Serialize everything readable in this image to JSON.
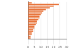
{
  "chart_data": {
    "type": "bar",
    "orientation": "horizontal",
    "categories": [
      null,
      null,
      null,
      null,
      null,
      null,
      null,
      null,
      null,
      null,
      null,
      null,
      null,
      null,
      null,
      null,
      null,
      null,
      null,
      null,
      null,
      null
    ],
    "values": [
      3,
      24,
      20,
      17,
      14,
      12,
      11,
      10,
      9,
      9,
      8,
      7,
      7,
      6,
      5,
      5,
      4,
      4,
      3,
      3,
      2,
      2
    ],
    "color": "#e8743b",
    "xlim": [
      0,
      30
    ],
    "xticks": [
      0,
      5,
      10,
      15,
      20,
      25,
      30
    ],
    "grid": true
  }
}
